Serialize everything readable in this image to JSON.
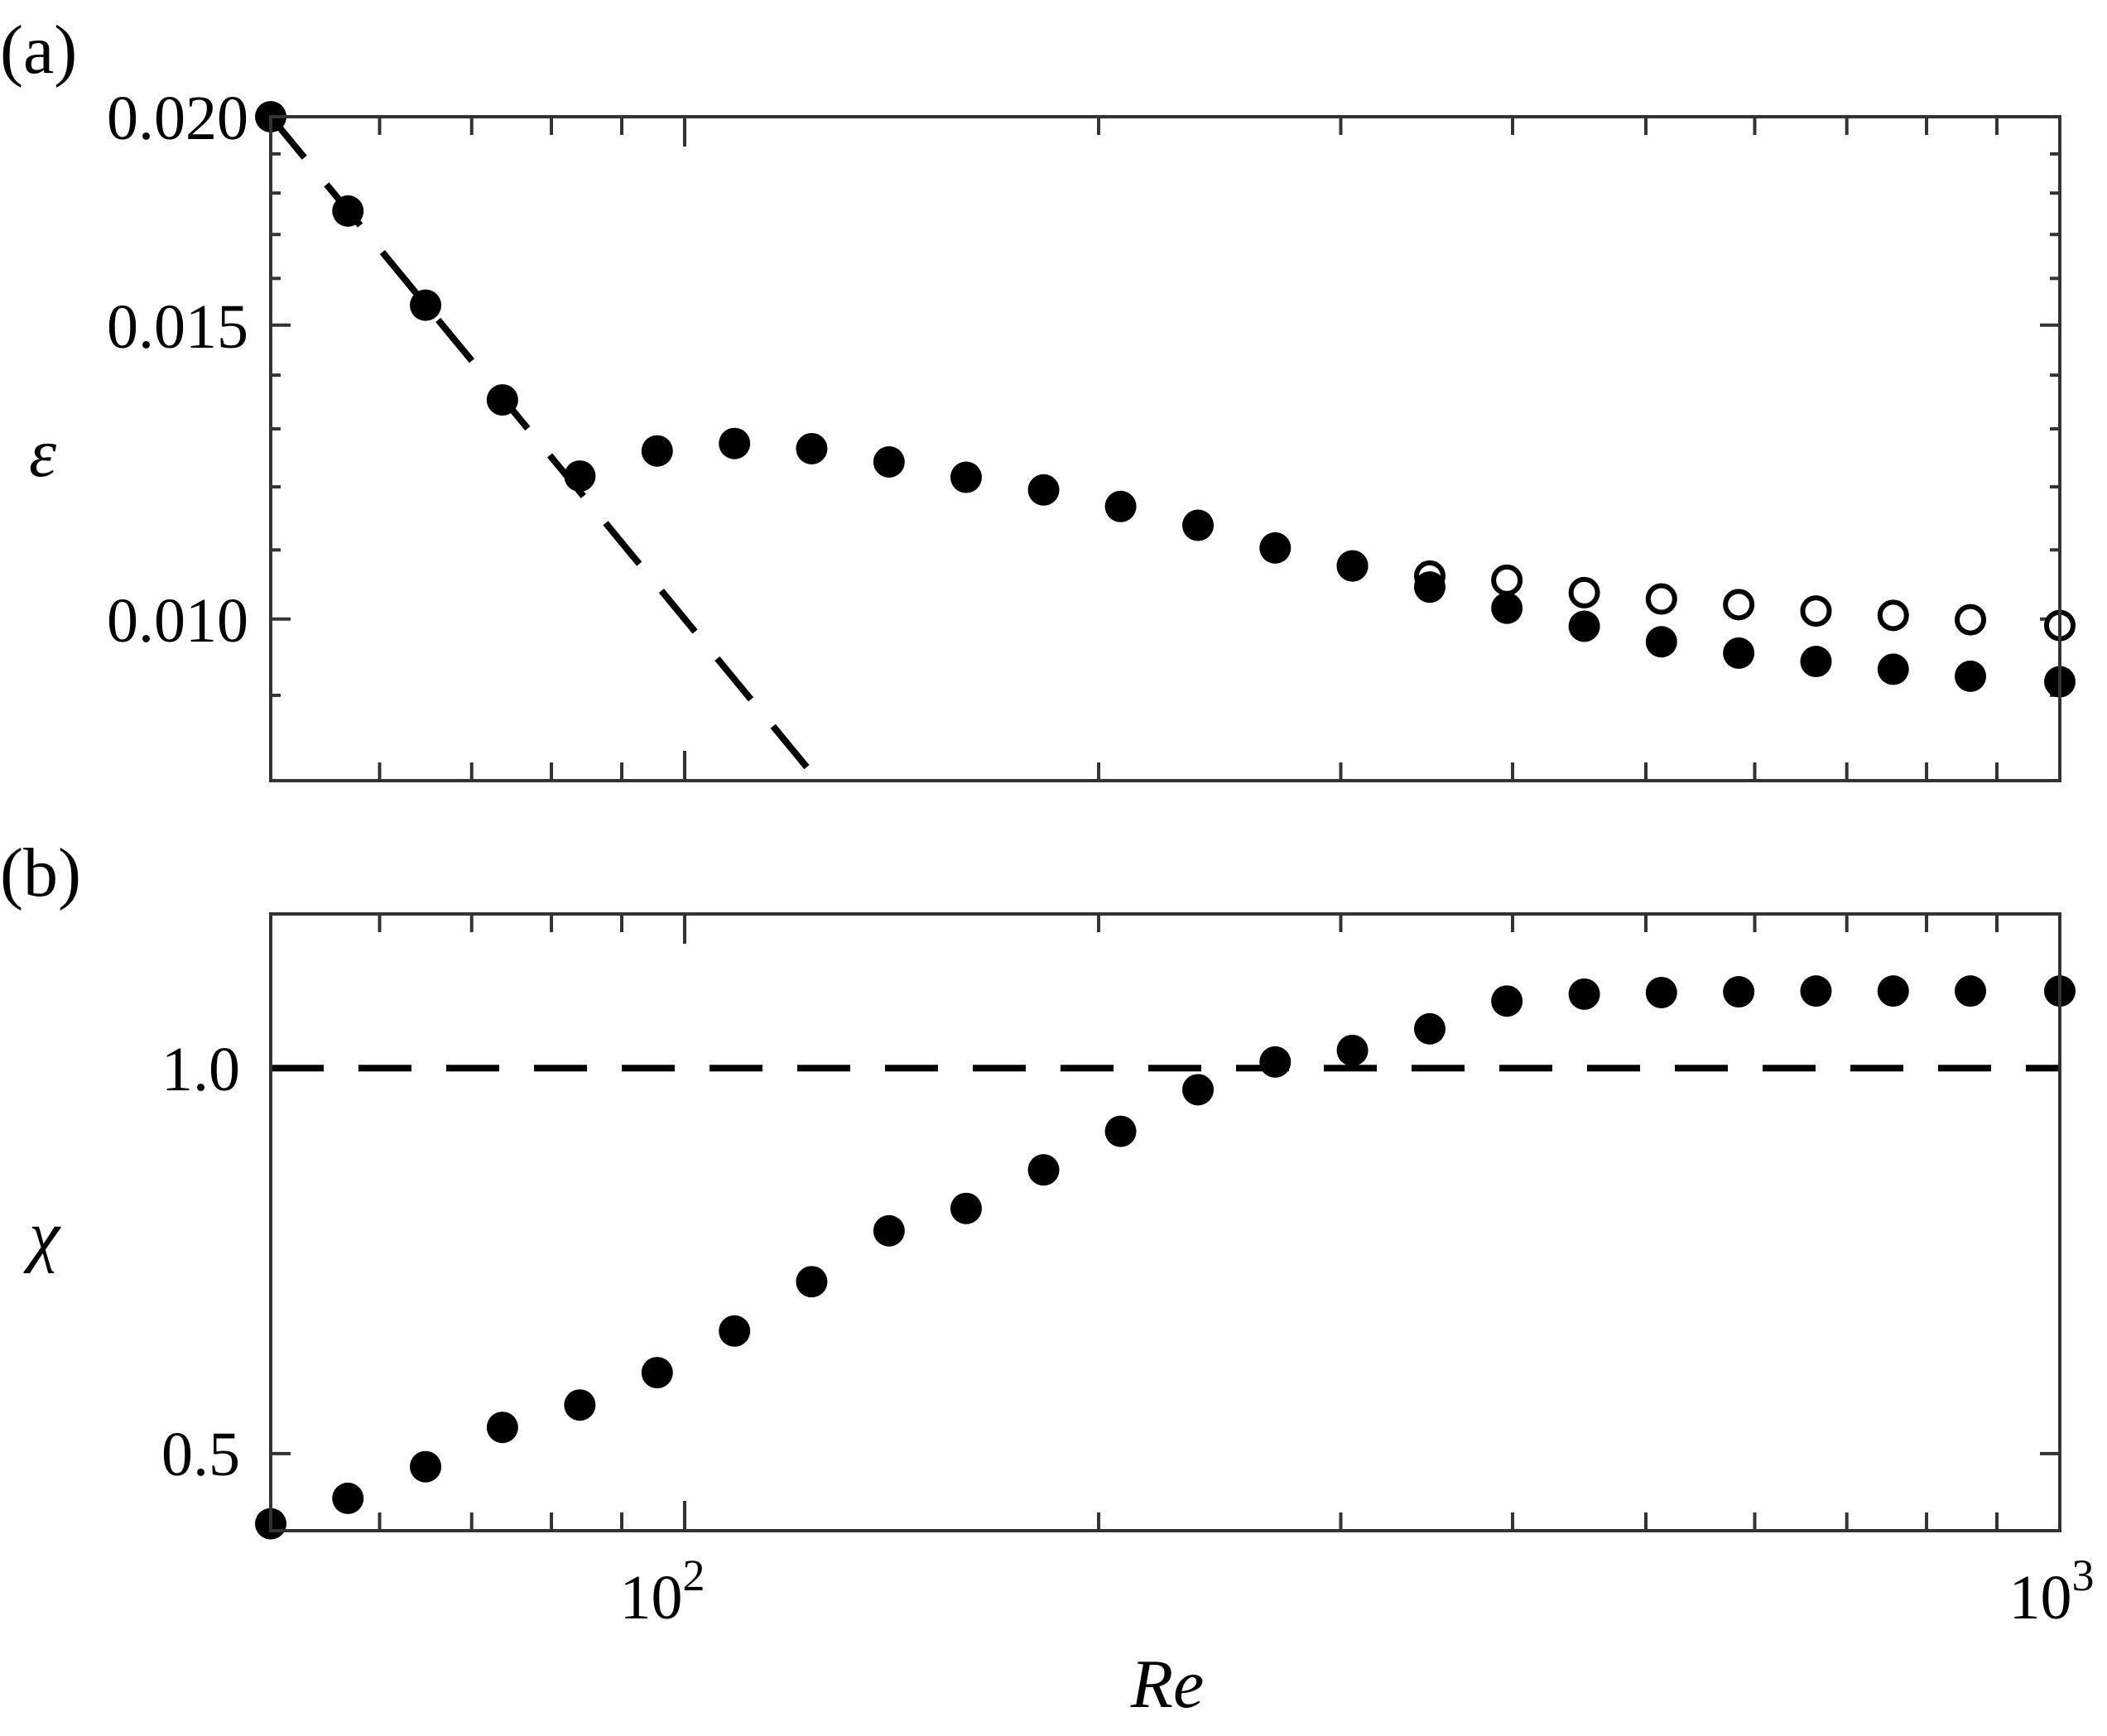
{
  "figure": {
    "panels": [
      {
        "id": "a",
        "label": "(a)",
        "ylabel": "ε",
        "yticks": [
          "0.010",
          "0.015",
          "0.020"
        ]
      },
      {
        "id": "b",
        "label": "(b)",
        "ylabel": "χ",
        "yticks": [
          "0.5",
          "1.0"
        ]
      }
    ],
    "xlabel": "Re",
    "xticks": [
      {
        "base": "10",
        "exp": "2"
      },
      {
        "base": "10",
        "exp": "3"
      }
    ]
  },
  "colors": {
    "marker": "#000000",
    "axis": "#333333",
    "background": "#ffffff"
  },
  "chart_data": [
    {
      "panel": "a",
      "type": "scatter",
      "title": "",
      "xlabel": "Re",
      "ylabel": "ε",
      "xscale": "log",
      "yscale": "log",
      "xlim": [
        50,
        1000
      ],
      "ylim": [
        0.008,
        0.02
      ],
      "xticks": [
        100,
        1000
      ],
      "yticks": [
        0.01,
        0.015,
        0.02
      ],
      "grid": false,
      "legend": null,
      "x": [
        50.0,
        56.9,
        64.8,
        73.7,
        83.9,
        95.5,
        108.7,
        123.7,
        140.8,
        160.2,
        182.4,
        207.5,
        236.2,
        268.8,
        305.9,
        348.2,
        396.2,
        451.0,
        513.2,
        584.1,
        664.8,
        756.6,
        861.0,
        1000.0
      ],
      "series": [
        {
          "name": "filled circles",
          "marker": "filled-circle",
          "values": [
            0.02,
            0.01756,
            0.01542,
            0.01353,
            0.01218,
            0.01261,
            0.01274,
            0.01265,
            0.01242,
            0.01216,
            0.01195,
            0.01168,
            0.01138,
            0.01103,
            0.01076,
            0.01045,
            0.01015,
            0.0099,
            0.00969,
            0.00954,
            0.00943,
            0.00933,
            0.00924,
            0.00917
          ]
        },
        {
          "name": "open circles",
          "marker": "open-circle",
          "values": [
            null,
            null,
            null,
            null,
            null,
            null,
            null,
            null,
            null,
            null,
            null,
            null,
            null,
            null,
            0.01076,
            0.01061,
            0.01055,
            0.01037,
            0.01028,
            0.0102,
            0.01011,
            0.01005,
            0.00999,
            0.00991
          ]
        },
        {
          "name": "dashed reference ε = 1/Re",
          "marker": "dashed-line",
          "line": {
            "x": [
              50,
              125
            ],
            "y": [
              0.02,
              0.008
            ]
          }
        }
      ]
    },
    {
      "panel": "b",
      "type": "scatter",
      "title": "",
      "xlabel": "Re",
      "ylabel": "χ",
      "xscale": "log",
      "yscale": "linear",
      "xlim": [
        50,
        1000
      ],
      "ylim": [
        0.4,
        1.2
      ],
      "xticks": [
        100,
        1000
      ],
      "yticks": [
        0.5,
        1.0
      ],
      "grid": false,
      "legend": null,
      "x": [
        50.0,
        56.9,
        64.8,
        73.7,
        83.9,
        95.5,
        108.7,
        123.7,
        140.8,
        160.2,
        182.4,
        207.5,
        236.2,
        268.8,
        305.9,
        348.2,
        396.2,
        451.0,
        513.2,
        584.1,
        664.8,
        756.6,
        861.0,
        1000.0
      ],
      "series": [
        {
          "name": "filled circles",
          "marker": "filled-circle",
          "values": [
            0.409,
            0.442,
            0.483,
            0.534,
            0.563,
            0.605,
            0.659,
            0.723,
            0.789,
            0.818,
            0.868,
            0.918,
            0.972,
            1.008,
            1.023,
            1.051,
            1.087,
            1.096,
            1.098,
            1.099,
            1.1,
            1.1,
            1.1,
            1.1
          ]
        },
        {
          "name": "dashed reference χ = 1",
          "marker": "dashed-line",
          "line": {
            "x": [
              50,
              1000
            ],
            "y": [
              1.0,
              1.0
            ]
          }
        }
      ]
    }
  ]
}
